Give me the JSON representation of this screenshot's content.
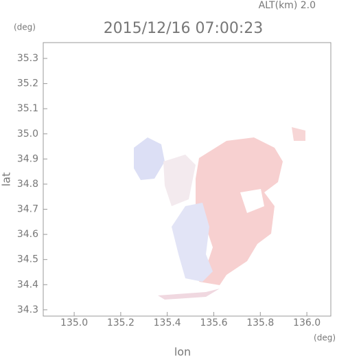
{
  "chart_data": {
    "type": "map",
    "title": "2015/12/16 07:00:23",
    "annotation": "ALT(km) 2.0",
    "y_unit": "(deg)",
    "x_unit": "(deg)",
    "ylabel": "lat",
    "xlabel": "lon",
    "xlim": [
      134.867,
      136.103
    ],
    "ylim": [
      34.275,
      35.363
    ],
    "xticks": [
      {
        "value": 135,
        "label": "135.0"
      },
      135.2,
      135.4,
      135.6,
      135.8,
      {
        "value": 136,
        "label": "136.0"
      }
    ],
    "yticks": [
      34.3,
      34.4,
      34.5,
      34.6,
      34.7,
      34.8,
      34.9,
      {
        "value": 35,
        "label": "35.0"
      },
      35.1,
      35.2,
      35.3
    ]
  }
}
